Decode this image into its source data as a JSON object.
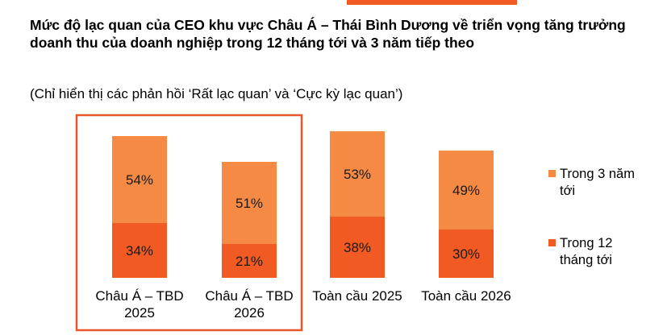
{
  "header": {
    "title": "Mức độ lạc quan của CEO khu vực Châu Á – Thái Bình Dương về triển vọng tăng trưởng doanh thu của doanh nghiệp trong 12 tháng tới và 3 năm tiếp theo",
    "subtitle": "(Chỉ hiển thị các phản hồi ‘Rất lạc quan’ và ‘Cực kỳ lạc quan’)"
  },
  "colors": {
    "accent": "#f15a22",
    "series_12_months": "#f15a22",
    "series_3_years": "#f58a45",
    "highlight_box": "#e8562a"
  },
  "chart_data": {
    "type": "bar",
    "stacked": true,
    "categories": [
      [
        "Châu Á – TBD",
        "2025"
      ],
      [
        "Châu Á – TBD",
        "2026"
      ],
      [
        "Toàn cầu 2025"
      ],
      [
        "Toàn cầu 2026"
      ]
    ],
    "series": [
      {
        "name": "Trong 12 tháng tới",
        "legend_lines": [
          "Trong 12",
          "tháng tới"
        ],
        "values": [
          34,
          21,
          38,
          30
        ],
        "labels": [
          "34%",
          "21%",
          "38%",
          "30%"
        ]
      },
      {
        "name": "Trong 3 năm tới",
        "legend_lines": [
          "Trong 3 năm",
          "tới"
        ],
        "values": [
          54,
          51,
          53,
          49
        ],
        "labels": [
          "54%",
          "51%",
          "53%",
          "49%"
        ]
      }
    ],
    "legend_position": "right",
    "highlight": "Châu Á – TBD",
    "grid": false
  }
}
